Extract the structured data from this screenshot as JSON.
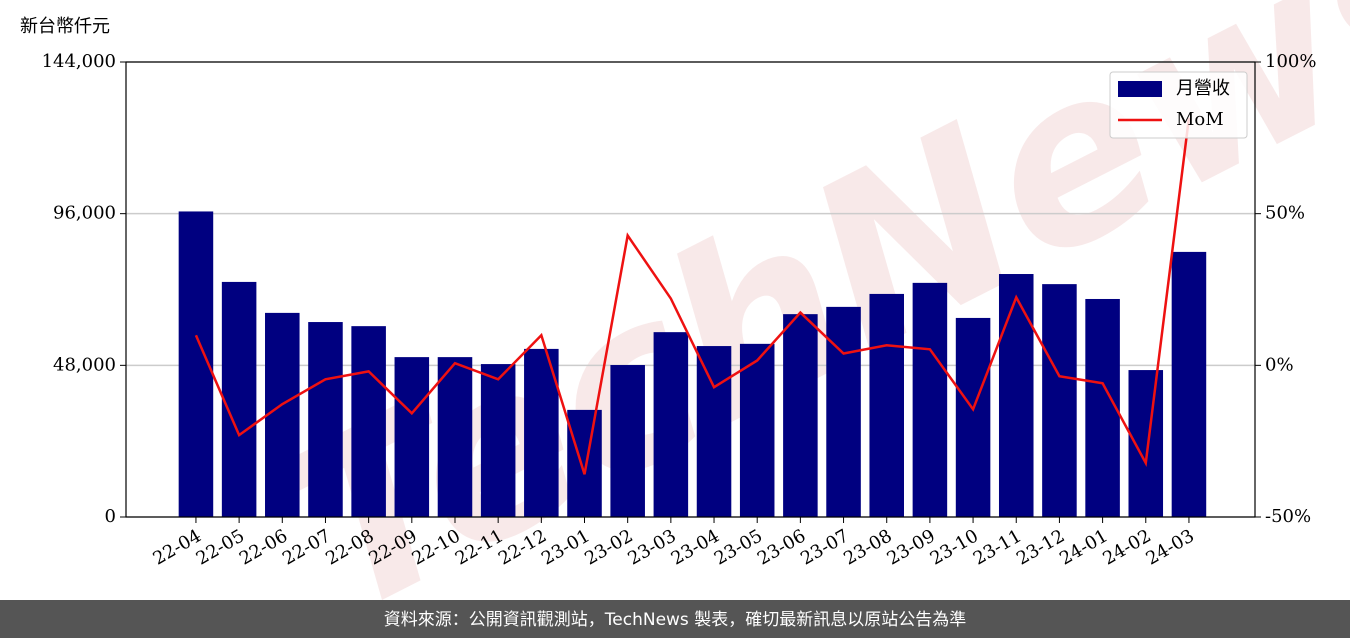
{
  "chart_data": {
    "type": "bar_line",
    "y_label": "新台幣仟元",
    "watermark": "TechNews",
    "footer": "資料來源：公開資訊觀測站，TechNews 製表，確切最新訊息以原站公告為準",
    "categories": [
      "22-04",
      "22-05",
      "22-06",
      "22-07",
      "22-08",
      "22-09",
      "22-10",
      "22-11",
      "22-12",
      "23-01",
      "23-02",
      "23-03",
      "23-04",
      "23-05",
      "23-06",
      "23-07",
      "23-08",
      "23-09",
      "23-10",
      "23-11",
      "23-12",
      "24-01",
      "24-02",
      "24-03"
    ],
    "series": [
      {
        "name": "月營收",
        "type": "bar",
        "color": "#000080",
        "values": [
          96700,
          74400,
          64600,
          61700,
          60400,
          50600,
          50600,
          48400,
          53200,
          33900,
          48100,
          58500,
          54100,
          54800,
          64200,
          66500,
          70600,
          74100,
          63000,
          76900,
          73700,
          69000,
          46500,
          83900
        ]
      },
      {
        "name": "MoM",
        "type": "line",
        "axis": "y2",
        "color": "#ee1111",
        "values": [
          9.9,
          -23,
          -12.8,
          -4.6,
          -2,
          -15.8,
          0.7,
          -4.6,
          9.9,
          -35.9,
          42.8,
          22,
          -7.2,
          1.6,
          17.4,
          3.9,
          6.6,
          5.3,
          -14.5,
          22.4,
          -3.6,
          -5.9,
          -32.2,
          81.6
        ]
      }
    ],
    "ylim": [
      0,
      144000
    ],
    "yticks": [
      0,
      {
        "value": 48000,
        "label": "48,000"
      },
      {
        "value": 96000,
        "label": "96,000"
      },
      {
        "value": 144000,
        "label": "144,000"
      }
    ],
    "y2lim": [
      -50,
      100
    ],
    "y2ticks": [
      {
        "value": -50,
        "label": "-50%"
      },
      {
        "value": 0,
        "label": "0%"
      },
      {
        "value": 50,
        "label": "50%"
      },
      {
        "value": 100,
        "label": "100%"
      }
    ],
    "grid": true,
    "legend": "upper right"
  }
}
